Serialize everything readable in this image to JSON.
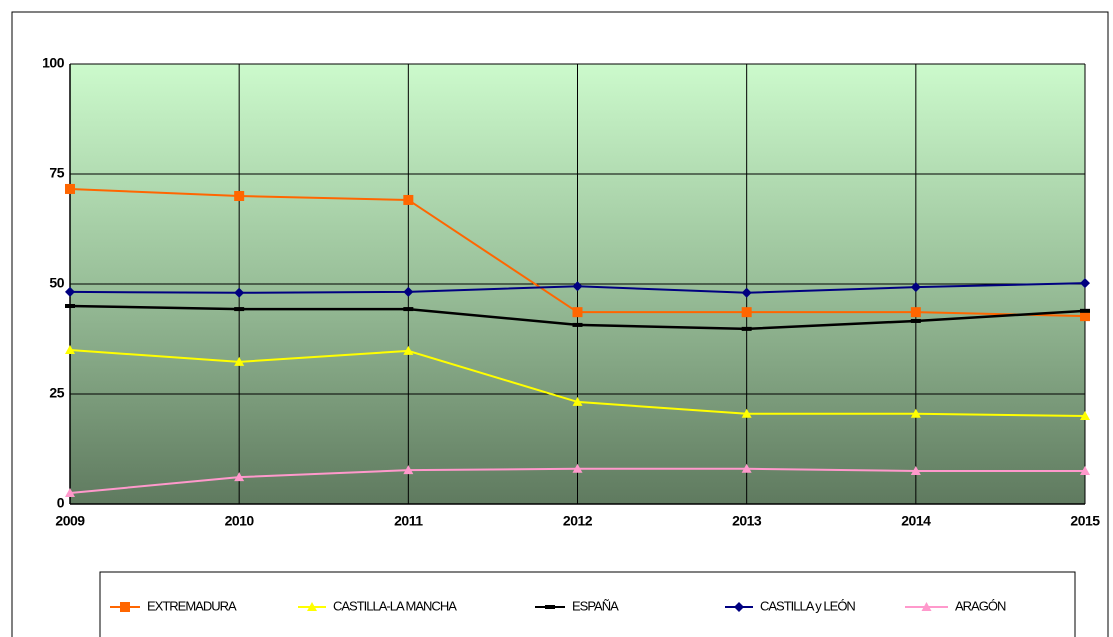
{
  "chart_data": {
    "type": "line",
    "x": [
      2009,
      2010,
      2011,
      2012,
      2013,
      2014,
      2015
    ],
    "xlim": [
      2009,
      2015
    ],
    "xticks": [
      2009,
      2010,
      2011,
      2012,
      2013,
      2014,
      2015
    ],
    "ylim": [
      0,
      100
    ],
    "yticks": [
      0,
      25,
      50,
      75,
      100
    ],
    "grid": true,
    "legend": "bottom",
    "series": [
      {
        "name": "EXTREMADURA",
        "color": "#ff6600",
        "marker": "square",
        "values": [
          71.6,
          70,
          69.1,
          43.6,
          43.6,
          43.6,
          42.7
        ]
      },
      {
        "name": "CASTILLA-LA MANCHA",
        "color": "#ffff00",
        "marker": "triangle",
        "values": [
          35,
          32.3,
          34.8,
          23.2,
          20.5,
          20.5,
          20
        ]
      },
      {
        "name": "ESPAÑA",
        "color": "#000000",
        "marker": "dash",
        "values": [
          45,
          44.3,
          44.3,
          40.7,
          39.8,
          41.6,
          43.9
        ]
      },
      {
        "name": "CASTILLA y LEÓN",
        "color": "#000080",
        "marker": "diamond",
        "values": [
          48.2,
          48,
          48.2,
          49.5,
          48,
          49.3,
          50.2
        ]
      },
      {
        "name": "ARAGÓN",
        "color": "#ff99cc",
        "marker": "triangle",
        "values": [
          2.5,
          6.1,
          7.7,
          8,
          8,
          7.5,
          7.5
        ]
      }
    ]
  }
}
